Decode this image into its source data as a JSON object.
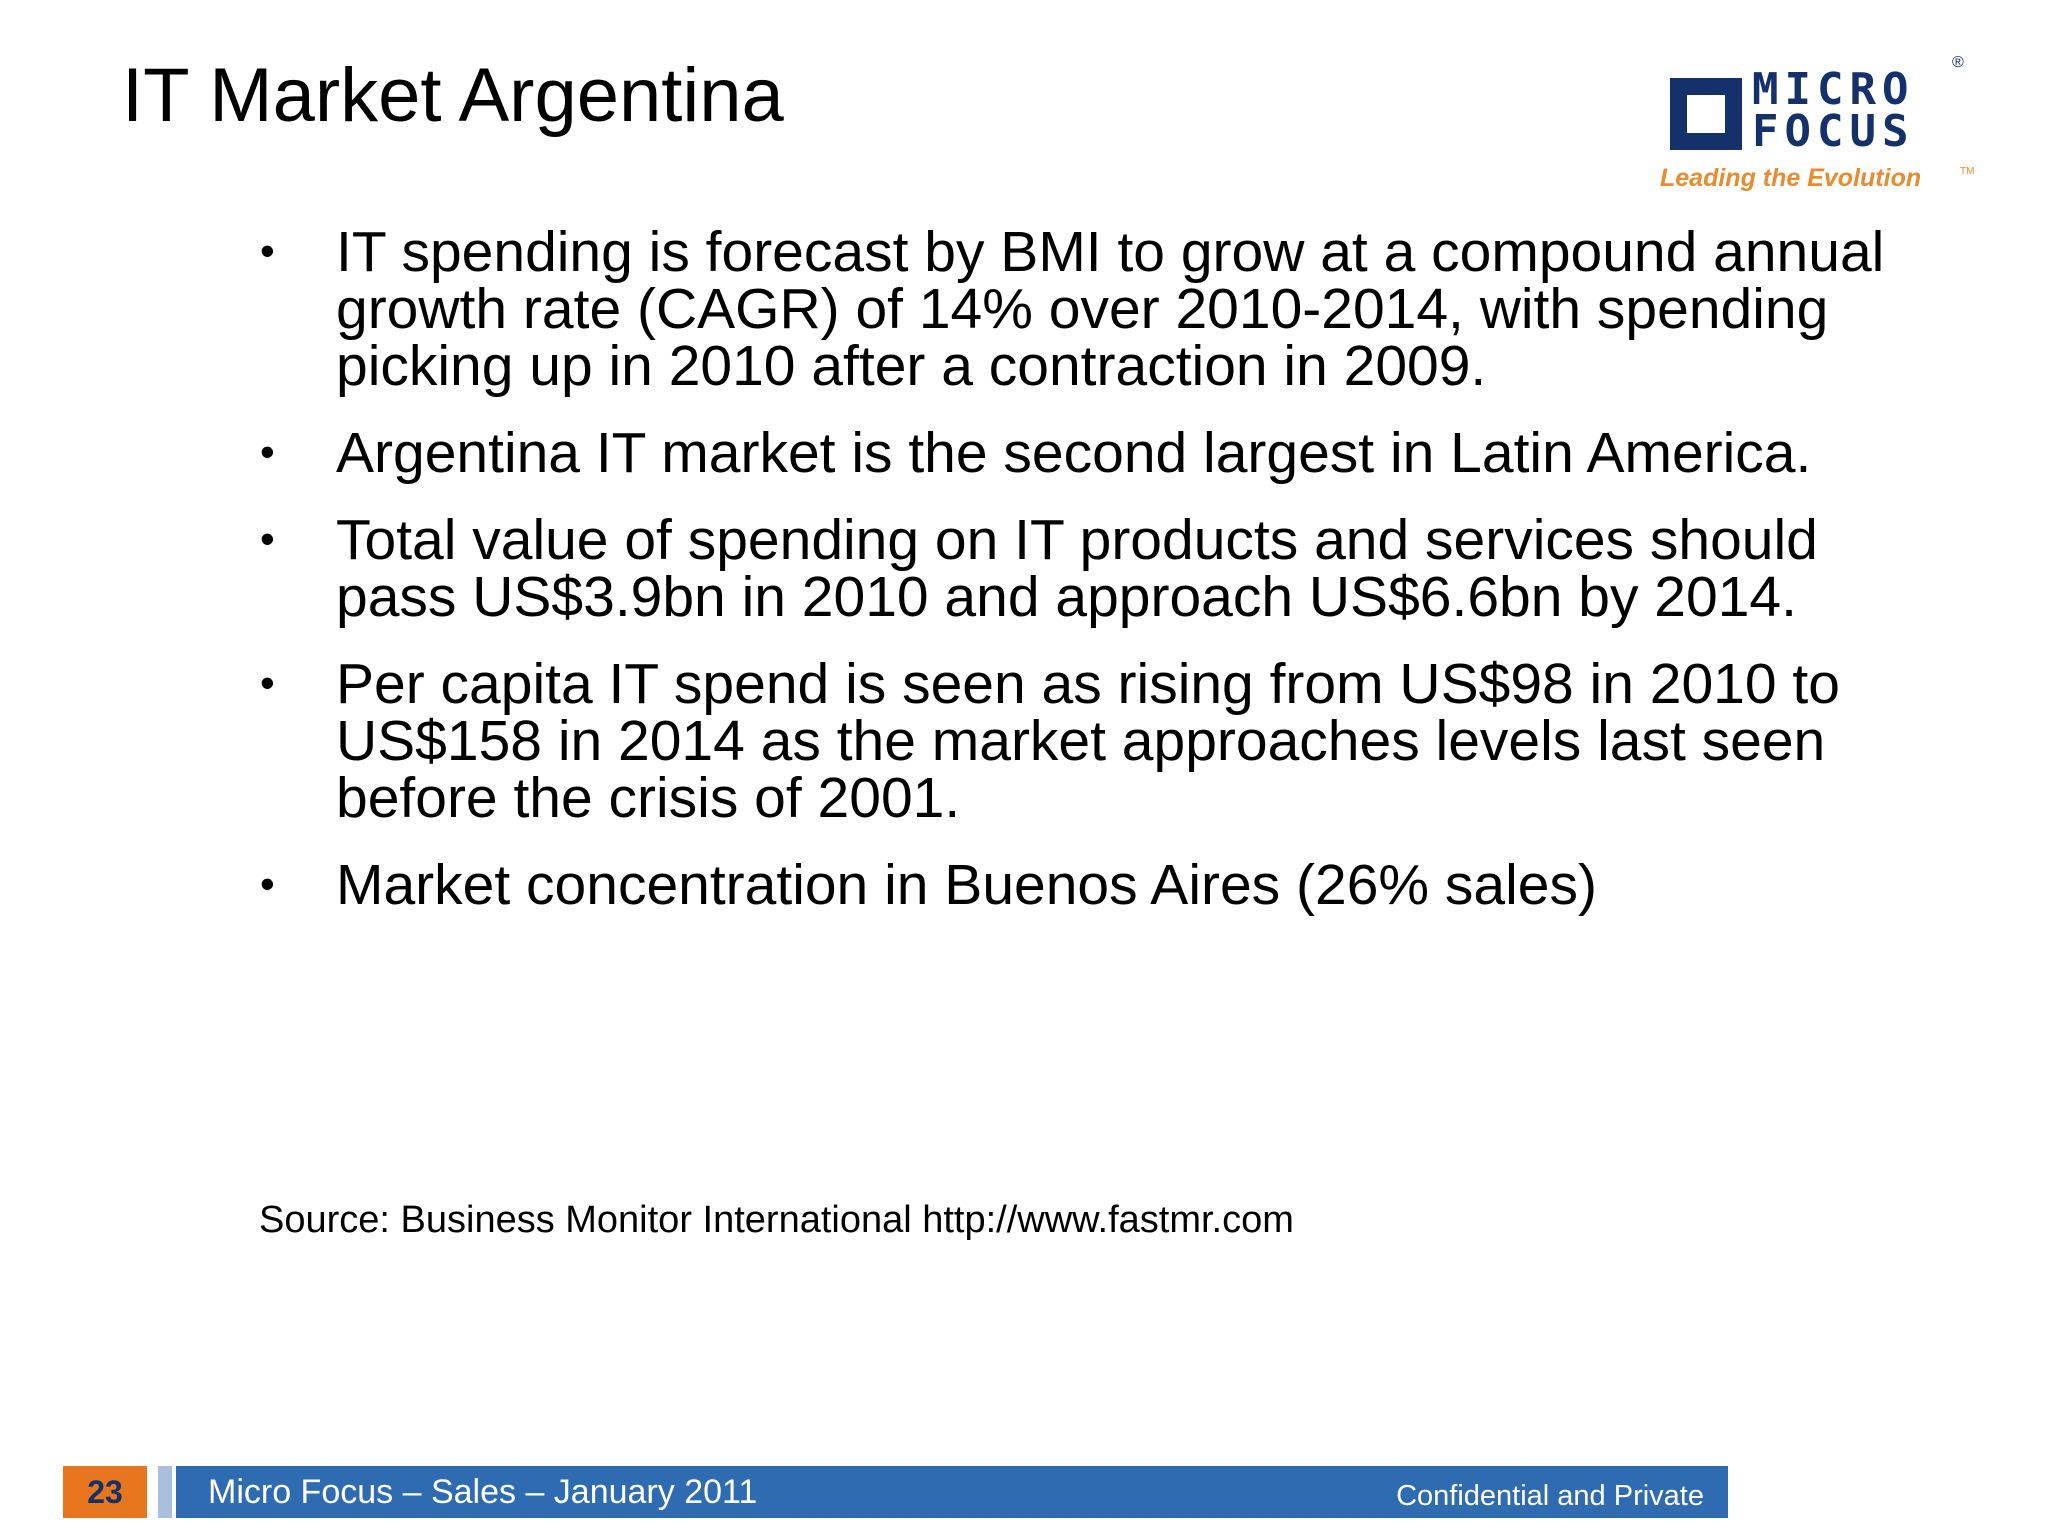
{
  "slide": {
    "title": "IT Market Argentina",
    "bullets": [
      "IT spending is forecast by BMI to grow at a compound annual growth rate (CAGR) of 14% over 2010-2014, with spending picking up in 2010 after a contraction in 2009.",
      "Argentina IT market is the second largest in Latin America.",
      "Total value of spending on IT products and services should pass US$3.9bn in 2010 and approach US$6.6bn by 2014.",
      "Per capita IT spend is seen as rising from US$98 in 2010 to US$158 in 2014 as the market approaches levels last seen before the crisis of 2001.",
      "Market concentration in Buenos Aires (26% sales)"
    ],
    "bullet_glyph": "•",
    "source": "Source: Business Monitor International http://www.fastmr.com"
  },
  "logo": {
    "word_line1": "MICRO",
    "word_line2": "FOCUS",
    "registered": "®",
    "tagline": "Leading the Evolution",
    "trademark": "TM",
    "brand_color": "#14316b",
    "tagline_color": "#e98b2f"
  },
  "footer": {
    "page_number": "23",
    "title": "Micro Focus – Sales – January 2011",
    "confidential": "Confidential and Private",
    "bar_color": "#2e6bb0",
    "page_box_color": "#e8761f"
  }
}
